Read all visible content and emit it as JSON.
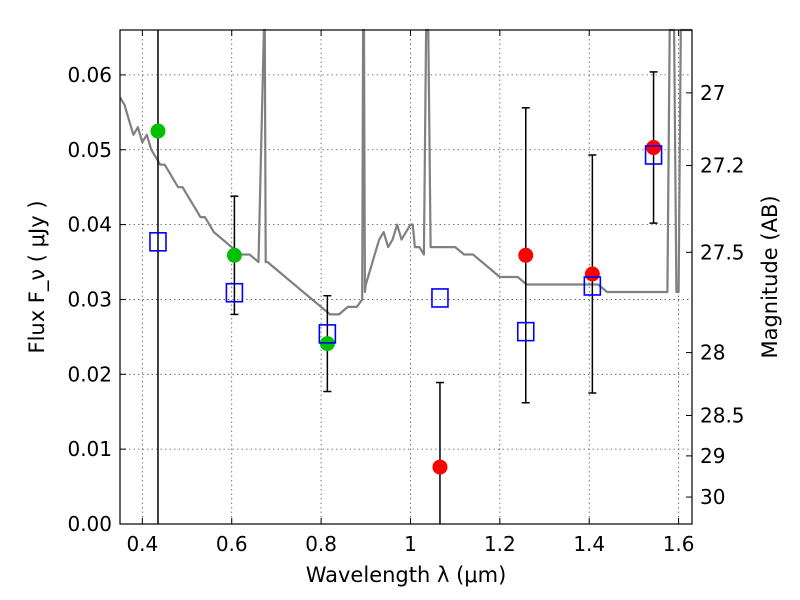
{
  "chart_data": {
    "type": "scatter",
    "title": "",
    "xlabel": "Wavelength  λ (μm)",
    "ylabel": "Flux  F_ν  ( μJy )",
    "ylabel_right": "Magnitude (AB)",
    "xlim": [
      0.35,
      1.63
    ],
    "ylim": [
      0.0,
      0.066
    ],
    "grid": true,
    "x_ticks": [
      0.4,
      0.6,
      0.8,
      1.0,
      1.2,
      1.4,
      1.6
    ],
    "x_tick_labels": [
      "0.4",
      "0.6",
      "0.8",
      "1",
      "1.2",
      "1.4",
      "1.6"
    ],
    "y_ticks": [
      0.0,
      0.01,
      0.02,
      0.03,
      0.04,
      0.05,
      0.06
    ],
    "y_tick_labels": [
      "0.00",
      "0.01",
      "0.02",
      "0.03",
      "0.04",
      "0.05",
      "0.06"
    ],
    "right_axis_ticks": [
      {
        "label": "27",
        "flux": 0.0576
      },
      {
        "label": "27.2",
        "flux": 0.0479
      },
      {
        "label": "27.5",
        "flux": 0.0363
      },
      {
        "label": "28",
        "flux": 0.0229
      },
      {
        "label": "28.5",
        "flux": 0.0145
      },
      {
        "label": "29",
        "flux": 0.0091
      },
      {
        "label": "30",
        "flux": 0.0036
      }
    ],
    "series": [
      {
        "color": "#00c000",
        "marker": "circle",
        "x": [
          0.435,
          0.606,
          0.814
        ],
        "y": [
          0.0525,
          0.0359,
          0.0241
        ],
        "yerr_low": [
          0.0525,
          0.0079,
          0.0064
        ],
        "yerr_high": [
          0.0135,
          0.0079,
          0.0064
        ]
      },
      {
        "color": "#ff0000",
        "marker": "circle",
        "x": [
          1.066,
          1.258,
          1.407,
          1.544
        ],
        "y": [
          0.0076,
          0.0359,
          0.0334,
          0.0503
        ],
        "yerr_low": [
          0.0076,
          0.0197,
          0.0159,
          0.0101
        ],
        "yerr_high": [
          0.0113,
          0.0197,
          0.0159,
          0.0101
        ]
      },
      {
        "color": "#0000ff",
        "marker": "open-square",
        "x": [
          0.435,
          0.606,
          0.814,
          1.066,
          1.258,
          1.407,
          1.544
        ],
        "y": [
          0.0377,
          0.0309,
          0.0254,
          0.0302,
          0.0257,
          0.0318,
          0.0493
        ]
      },
      {
        "color": "#808080",
        "marker": "line",
        "x": [
          0.35,
          0.36,
          0.37,
          0.38,
          0.39,
          0.4,
          0.41,
          0.42,
          0.43,
          0.44,
          0.45,
          0.46,
          0.47,
          0.48,
          0.49,
          0.5,
          0.51,
          0.52,
          0.53,
          0.54,
          0.55,
          0.56,
          0.58,
          0.6,
          0.62,
          0.64,
          0.66,
          0.672,
          0.674,
          0.676,
          0.678,
          0.68,
          0.7,
          0.72,
          0.74,
          0.76,
          0.78,
          0.8,
          0.82,
          0.84,
          0.86,
          0.88,
          0.892,
          0.894,
          0.896,
          0.898,
          0.9,
          0.91,
          0.92,
          0.93,
          0.94,
          0.95,
          0.96,
          0.97,
          0.98,
          0.99,
          1.0,
          1.005,
          1.01,
          1.02,
          1.03,
          1.035,
          1.04,
          1.045,
          1.05,
          1.055,
          1.06,
          1.08,
          1.1,
          1.12,
          1.14,
          1.16,
          1.18,
          1.2,
          1.22,
          1.24,
          1.26,
          1.28,
          1.3,
          1.32,
          1.34,
          1.36,
          1.38,
          1.4,
          1.42,
          1.44,
          1.46,
          1.48,
          1.5,
          1.52,
          1.54,
          1.56,
          1.575,
          1.58,
          1.585,
          1.59,
          1.595,
          1.6,
          1.605,
          1.61,
          1.63
        ],
        "y": [
          0.057,
          0.056,
          0.054,
          0.052,
          0.053,
          0.051,
          0.052,
          0.05,
          0.049,
          0.048,
          0.048,
          0.047,
          0.046,
          0.045,
          0.045,
          0.044,
          0.043,
          0.042,
          0.041,
          0.041,
          0.04,
          0.039,
          0.038,
          0.037,
          0.036,
          0.036,
          0.035,
          0.066,
          0.066,
          0.035,
          0.035,
          0.035,
          0.034,
          0.033,
          0.032,
          0.031,
          0.03,
          0.029,
          0.028,
          0.028,
          0.029,
          0.029,
          0.03,
          0.066,
          0.066,
          0.031,
          0.032,
          0.034,
          0.036,
          0.038,
          0.039,
          0.037,
          0.038,
          0.04,
          0.038,
          0.039,
          0.04,
          0.04,
          0.037,
          0.037,
          0.036,
          0.066,
          0.066,
          0.037,
          0.037,
          0.037,
          0.037,
          0.037,
          0.037,
          0.036,
          0.036,
          0.035,
          0.034,
          0.033,
          0.033,
          0.033,
          0.032,
          0.032,
          0.032,
          0.032,
          0.032,
          0.032,
          0.032,
          0.032,
          0.032,
          0.031,
          0.031,
          0.031,
          0.031,
          0.031,
          0.031,
          0.031,
          0.031,
          0.066,
          0.066,
          0.066,
          0.031,
          0.031,
          0.066,
          0.066,
          0.066
        ]
      }
    ]
  }
}
